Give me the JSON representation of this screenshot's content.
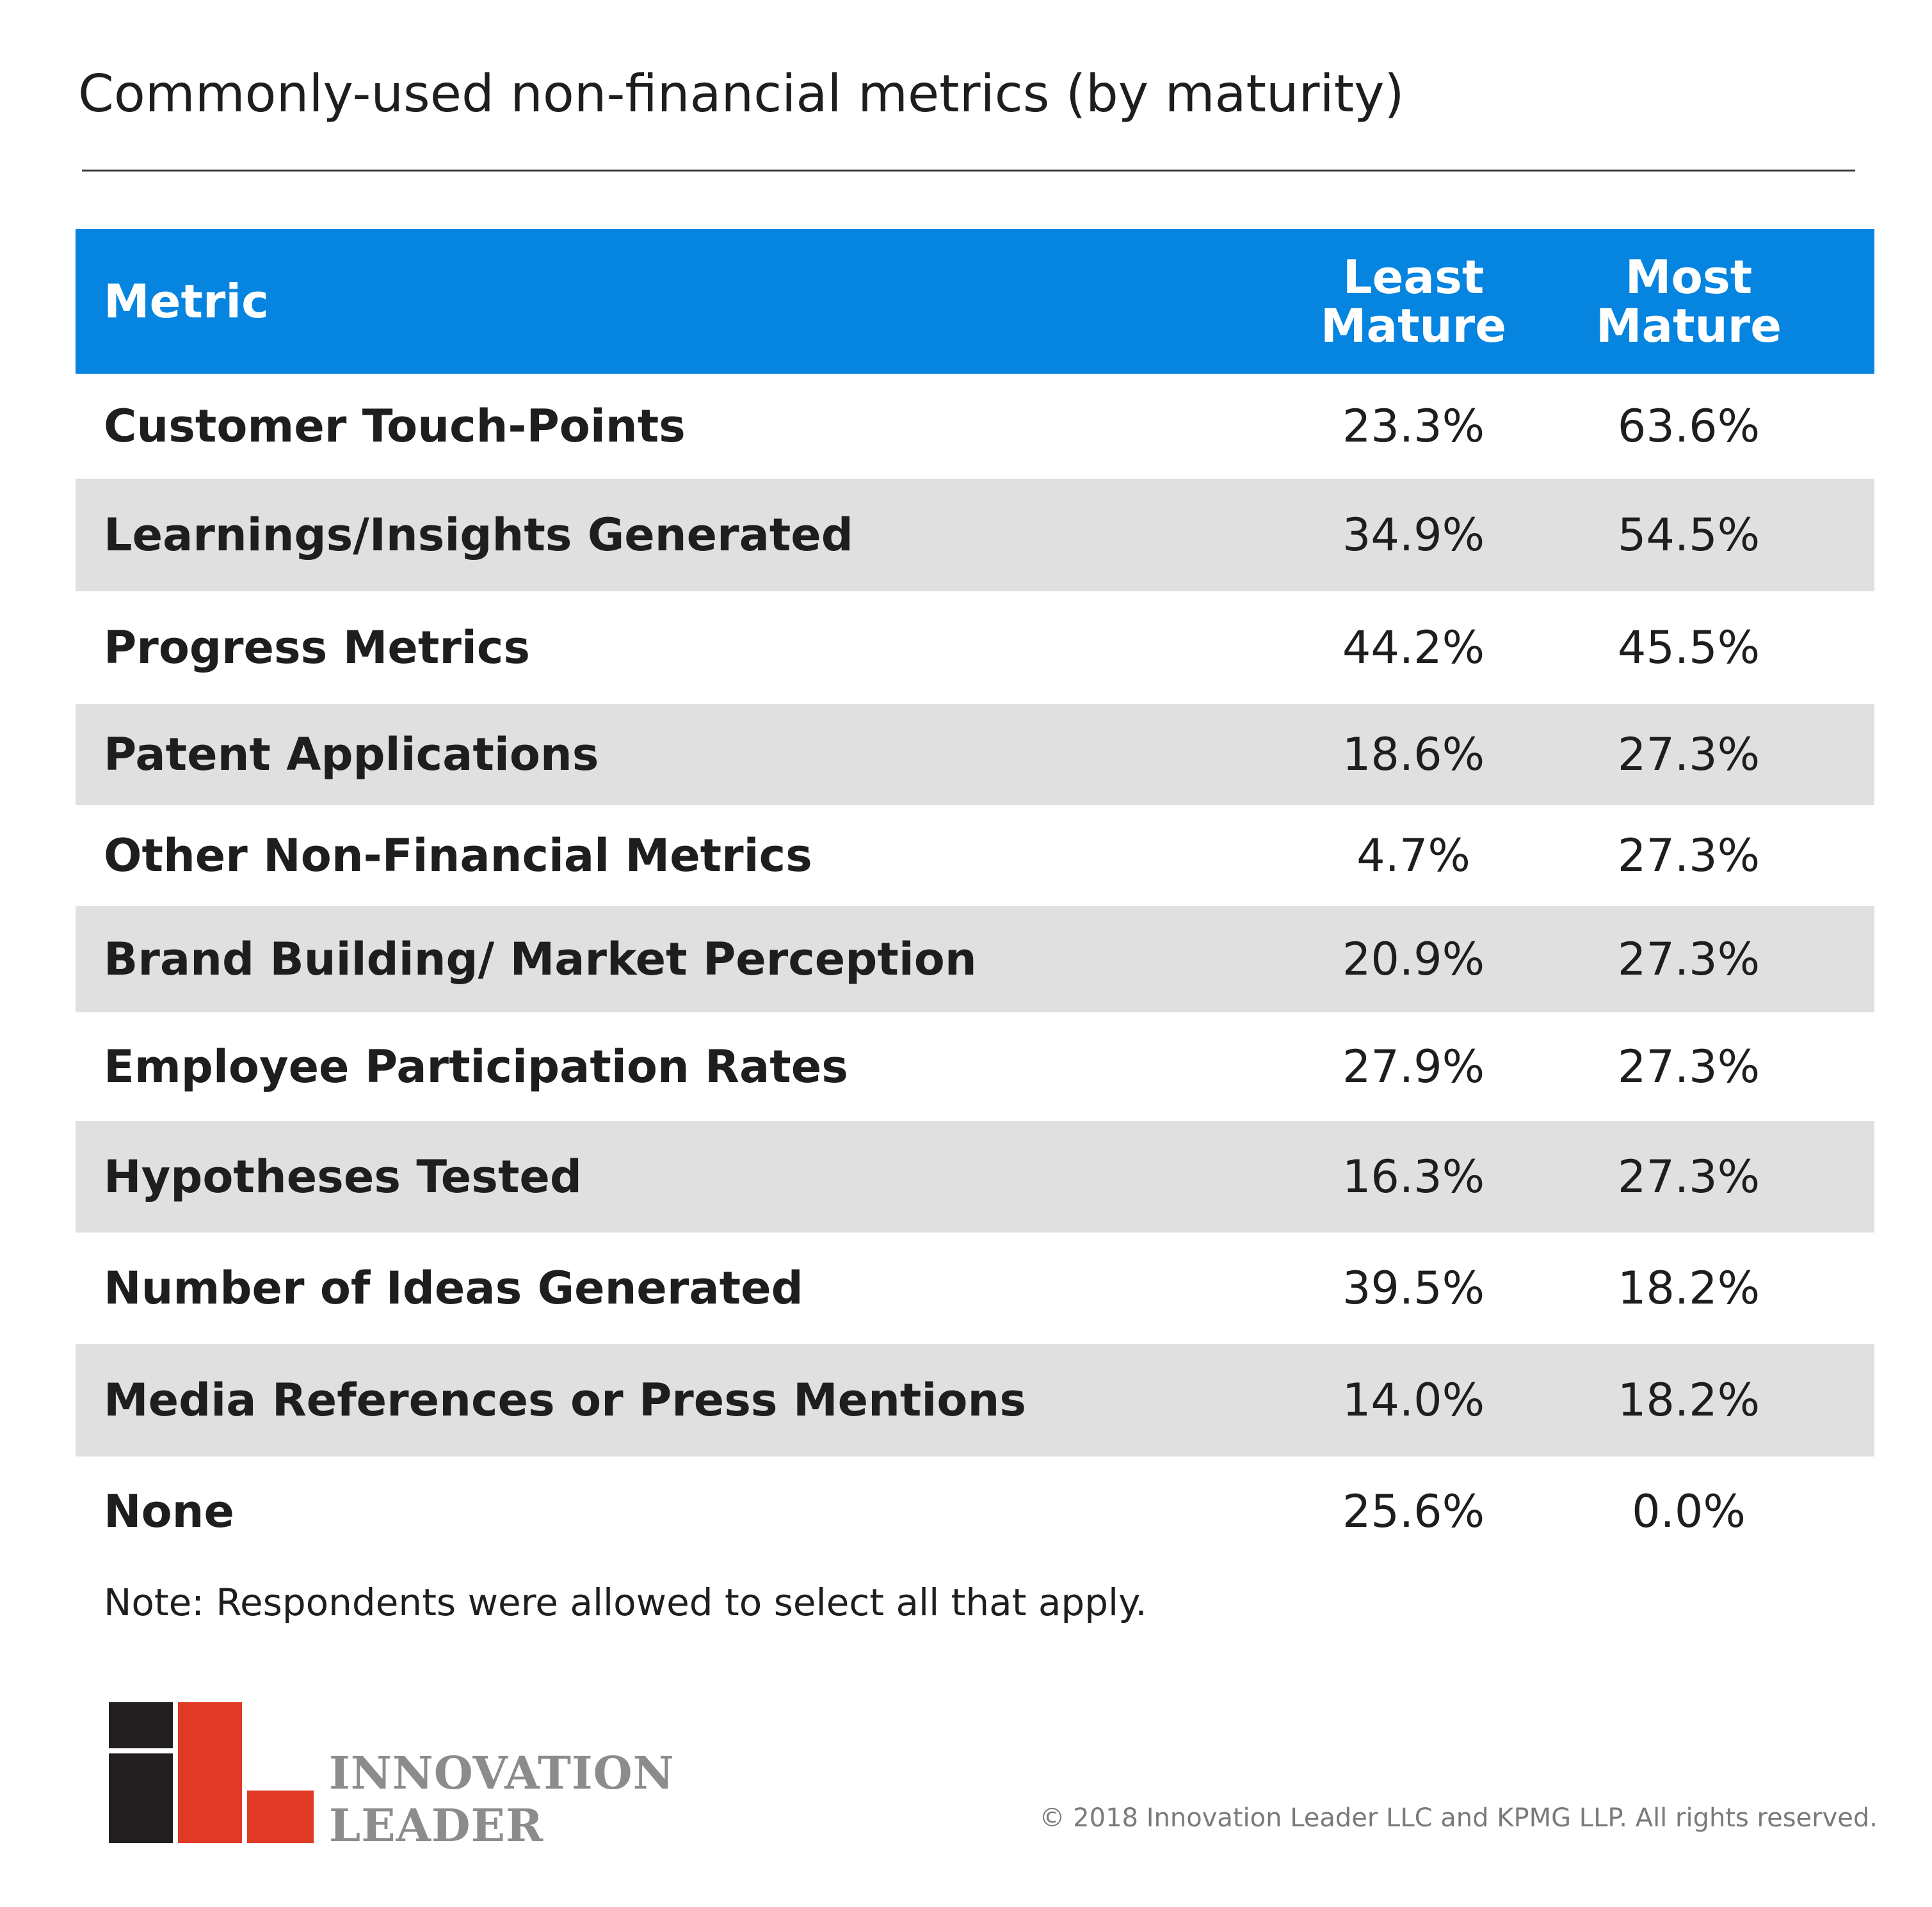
{
  "title": "Commonly-used non-financial metrics (by maturity)",
  "chart_data": {
    "type": "table",
    "columns": [
      "Metric",
      "Least Mature",
      "Most Mature"
    ],
    "header": {
      "metric": "Metric",
      "least_line1": "Least",
      "least_line2": "Mature",
      "most_line1": "Most",
      "most_line2": "Mature"
    },
    "rows": [
      {
        "metric": "Customer Touch-Points",
        "least": "23.3%",
        "most": "63.6%"
      },
      {
        "metric": "Learnings/Insights Generated",
        "least": "34.9%",
        "most": "54.5%"
      },
      {
        "metric": "Progress Metrics",
        "least": "44.2%",
        "most": "45.5%"
      },
      {
        "metric": "Patent Applications",
        "least": "18.6%",
        "most": "27.3%"
      },
      {
        "metric": "Other Non-Financial Metrics",
        "least": "4.7%",
        "most": "27.3%"
      },
      {
        "metric": "Brand Building/ Market Perception",
        "least": "20.9%",
        "most": "27.3%"
      },
      {
        "metric": "Employee Participation Rates",
        "least": "27.9%",
        "most": "27.3%"
      },
      {
        "metric": "Hypotheses Tested",
        "least": "16.3%",
        "most": "27.3%"
      },
      {
        "metric": "Number of Ideas Generated",
        "least": "39.5%",
        "most": "18.2%"
      },
      {
        "metric": "Media References or Press Mentions",
        "least": "14.0%",
        "most": "18.2%"
      },
      {
        "metric": "None",
        "least": "25.6%",
        "most": "0.0%"
      }
    ],
    "header_color": "#0584e0",
    "stripe_color": "#dfe0df"
  },
  "note": "Note: Respondents were allowed to select all that apply.",
  "brand": {
    "line1": "INNOVATION",
    "line2": "LEADER",
    "colors": {
      "dark": "#231f20",
      "red": "#e03a26"
    }
  },
  "copyright": "© 2018 Innovation Leader LLC and KPMG LLP. All rights reserved."
}
